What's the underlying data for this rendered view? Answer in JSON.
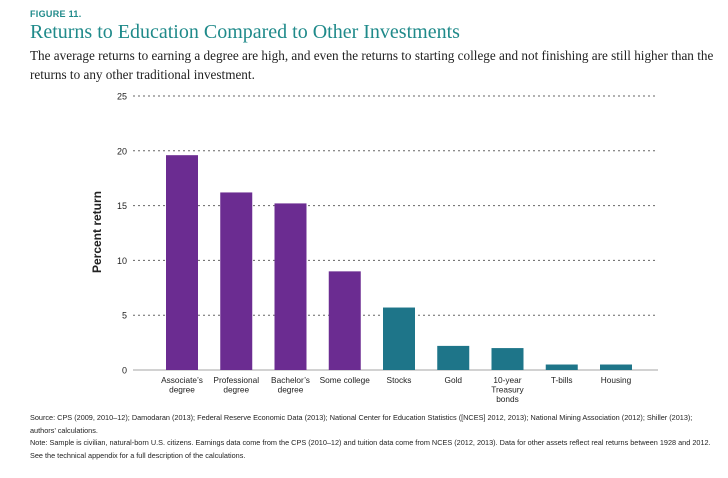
{
  "figure": {
    "label": "FIGURE 11.",
    "title": "Returns to Education Compared to Other Investments",
    "subtitle": "The average returns to earning a degree are high, and even the returns to starting college and not finishing are still higher than the returns to any other traditional investment."
  },
  "footnotes": {
    "source": "Source: CPS (2009, 2010–12); Damodaran (2013); Federal Reserve Economic Data (2013); National Center for Education Statistics ([NCES] 2012, 2013); National Mining Association (2012); Shiller (2013); authors’ calculations.",
    "note": "Note: Sample is civilian, natural-born U.S. citizens. Earnings data come from the CPS (2010–12) and tuition data come from NCES (2012, 2013). Data for other assets reflect real returns between 1928 and 2012. See the technical appendix for a full description of the calculations."
  },
  "colors": {
    "education": "#6b2c91",
    "other": "#1e7589",
    "text": "#222222",
    "accent": "#1f8a8a"
  },
  "chart_data": {
    "type": "bar",
    "title": "Returns to Education Compared to Other Investments",
    "xlabel": "",
    "ylabel": "Percent return",
    "ylim": [
      0,
      25
    ],
    "yticks": [
      0,
      5,
      10,
      15,
      20,
      25
    ],
    "grid": true,
    "categories": [
      [
        "Associate’s",
        "degree"
      ],
      [
        "Professional",
        "degree"
      ],
      [
        "Bachelor’s",
        "degree"
      ],
      [
        "Some college"
      ],
      [
        "Stocks"
      ],
      [
        "Gold"
      ],
      [
        "10-year",
        "Treasury",
        "bonds"
      ],
      [
        "T-bills"
      ],
      [
        "Housing"
      ]
    ],
    "values": [
      19.6,
      16.2,
      15.2,
      9.0,
      5.7,
      2.2,
      2.0,
      0.5,
      0.5
    ],
    "groups": [
      "education",
      "education",
      "education",
      "education",
      "other",
      "other",
      "other",
      "other",
      "other"
    ]
  }
}
